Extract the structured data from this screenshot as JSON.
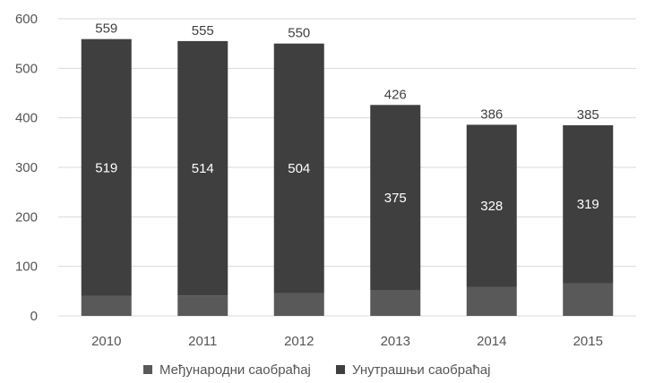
{
  "chart_data": {
    "type": "bar",
    "stacked": true,
    "categories": [
      "2010",
      "2011",
      "2012",
      "2013",
      "2014",
      "2015"
    ],
    "series": [
      {
        "name": "Међународни саобраћај",
        "values": [
          40,
          41,
          46,
          51,
          58,
          66
        ],
        "color": "#595959"
      },
      {
        "name": "Унутрашњи саобраћај",
        "values": [
          519,
          514,
          504,
          375,
          328,
          319
        ],
        "color": "#3f3f3f"
      }
    ],
    "totals": [
      559,
      555,
      550,
      426,
      386,
      385
    ],
    "ylim": [
      0,
      600
    ],
    "yticks": [
      0,
      100,
      200,
      300,
      400,
      500,
      600
    ],
    "grid": true,
    "legend": "bottom",
    "title": "",
    "xlabel": "",
    "ylabel": ""
  }
}
